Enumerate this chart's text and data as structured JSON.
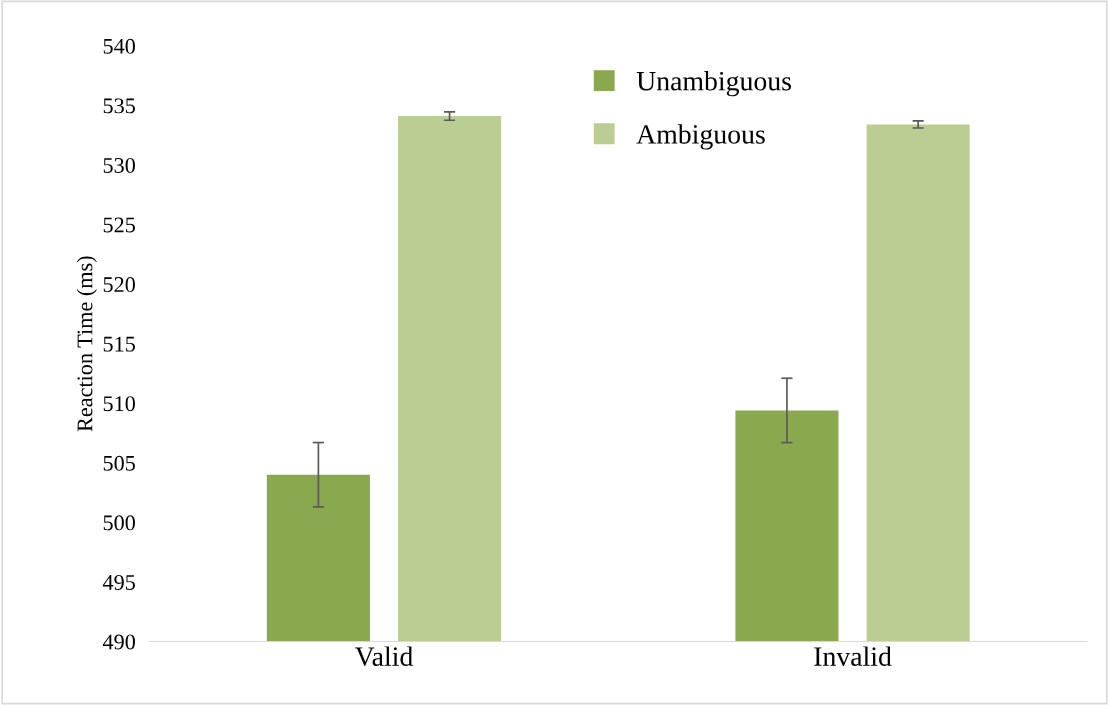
{
  "chart_data": {
    "type": "bar",
    "ylabel": "Reaction Time (ms)",
    "categories": [
      "Valid",
      "Invalid"
    ],
    "series": [
      {
        "name": "Unambiguous",
        "color": "#8aa84e",
        "values": [
          504.0,
          509.4
        ],
        "errors": [
          2.7,
          2.7
        ]
      },
      {
        "name": "Ambiguous",
        "color": "#bace94",
        "values": [
          534.1,
          533.4
        ],
        "errors": [
          0.35,
          0.3
        ]
      }
    ],
    "ylim": [
      490,
      540
    ],
    "yticks": [
      490,
      495,
      500,
      505,
      510,
      515,
      520,
      525,
      530,
      535,
      540
    ],
    "grid": false,
    "legend": "top"
  }
}
